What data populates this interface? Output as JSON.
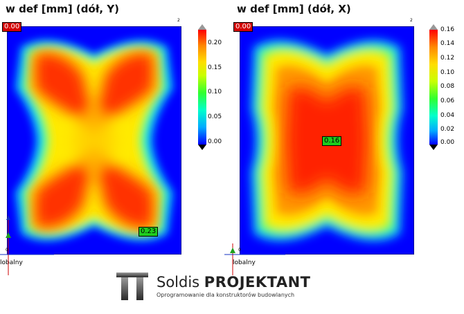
{
  "plots": [
    {
      "title": "w def [mm] (dół, Y)",
      "corner_top": "2",
      "corner_bottom": "0",
      "corner_box": "0.00",
      "value_box": "0.23",
      "colorbar": {
        "ticks": [
          "0.20",
          "0.15",
          "0.10",
          "0.05",
          "0.00"
        ]
      },
      "axis_label": "lobalny"
    },
    {
      "title": "w def [mm] (dół, X)",
      "corner_top": "2",
      "corner_bottom": "0",
      "corner_box": "0.00",
      "value_box": "0.16",
      "colorbar": {
        "ticks": [
          "0.16",
          "0.14",
          "0.12",
          "0.10",
          "0.08",
          "0.06",
          "0.04",
          "0.02",
          "0.00"
        ]
      },
      "axis_label": "lobalny"
    }
  ],
  "logo": {
    "brand_light": "Soldis ",
    "brand_bold": "PROJEKTANT",
    "tagline": "Oprogramowanie dla konstruktorów budowlanych"
  }
}
